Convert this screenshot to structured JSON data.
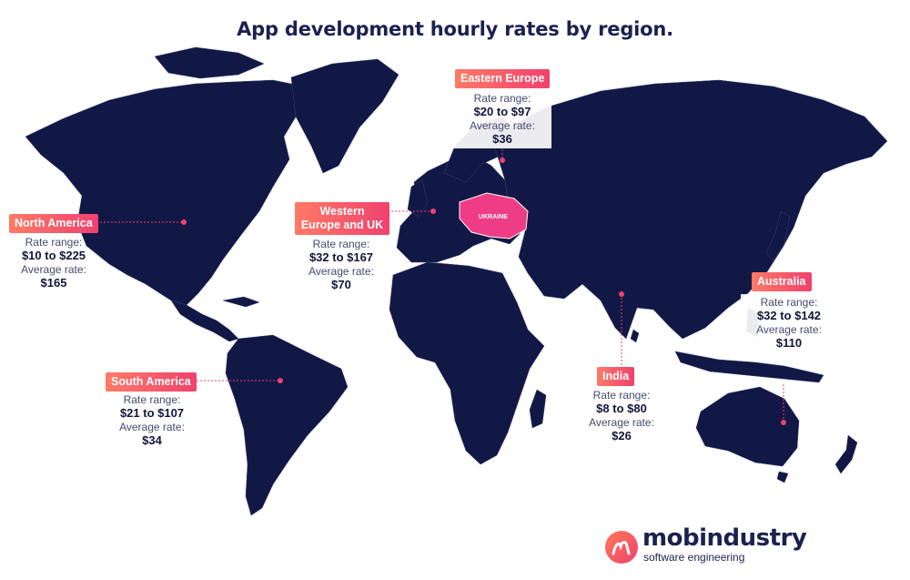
{
  "title": "App development hourly rates by region.",
  "colors": {
    "land": "#121845",
    "accent": "#f0416f",
    "ukraine": "#ee3d86",
    "text": "#1b2150"
  },
  "ukraine_label": "UKRAINE",
  "regions": [
    {
      "key": "north-america",
      "name": "North America",
      "range_label": "Rate range:",
      "range": "$10 to $225",
      "avg_label": "Average rate:",
      "avg": "$165"
    },
    {
      "key": "western-europe",
      "name": "Western Europe and UK",
      "range_label": "Rate range:",
      "range": "$32 to $167",
      "avg_label": "Average rate:",
      "avg": "$70"
    },
    {
      "key": "eastern-europe",
      "name": "Eastern Europe",
      "range_label": "Rate range:",
      "range": "$20 to $97",
      "avg_label": "Average rate:",
      "avg": "$36"
    },
    {
      "key": "south-america",
      "name": "South America",
      "range_label": "Rate range:",
      "range": "$21 to $107",
      "avg_label": "Average rate:",
      "avg": "$34"
    },
    {
      "key": "india",
      "name": "India",
      "range_label": "Rate range:",
      "range": "$8 to $80",
      "avg_label": "Average rate:",
      "avg": "$26"
    },
    {
      "key": "australia",
      "name": "Australia",
      "range_label": "Rate range:",
      "range": "$32 to $142",
      "avg_label": "Average rate:",
      "avg": "$110"
    }
  ],
  "logo": {
    "name": "mobindustry",
    "tagline": "software engineering",
    "icon": "mobindustry-logo-icon"
  }
}
